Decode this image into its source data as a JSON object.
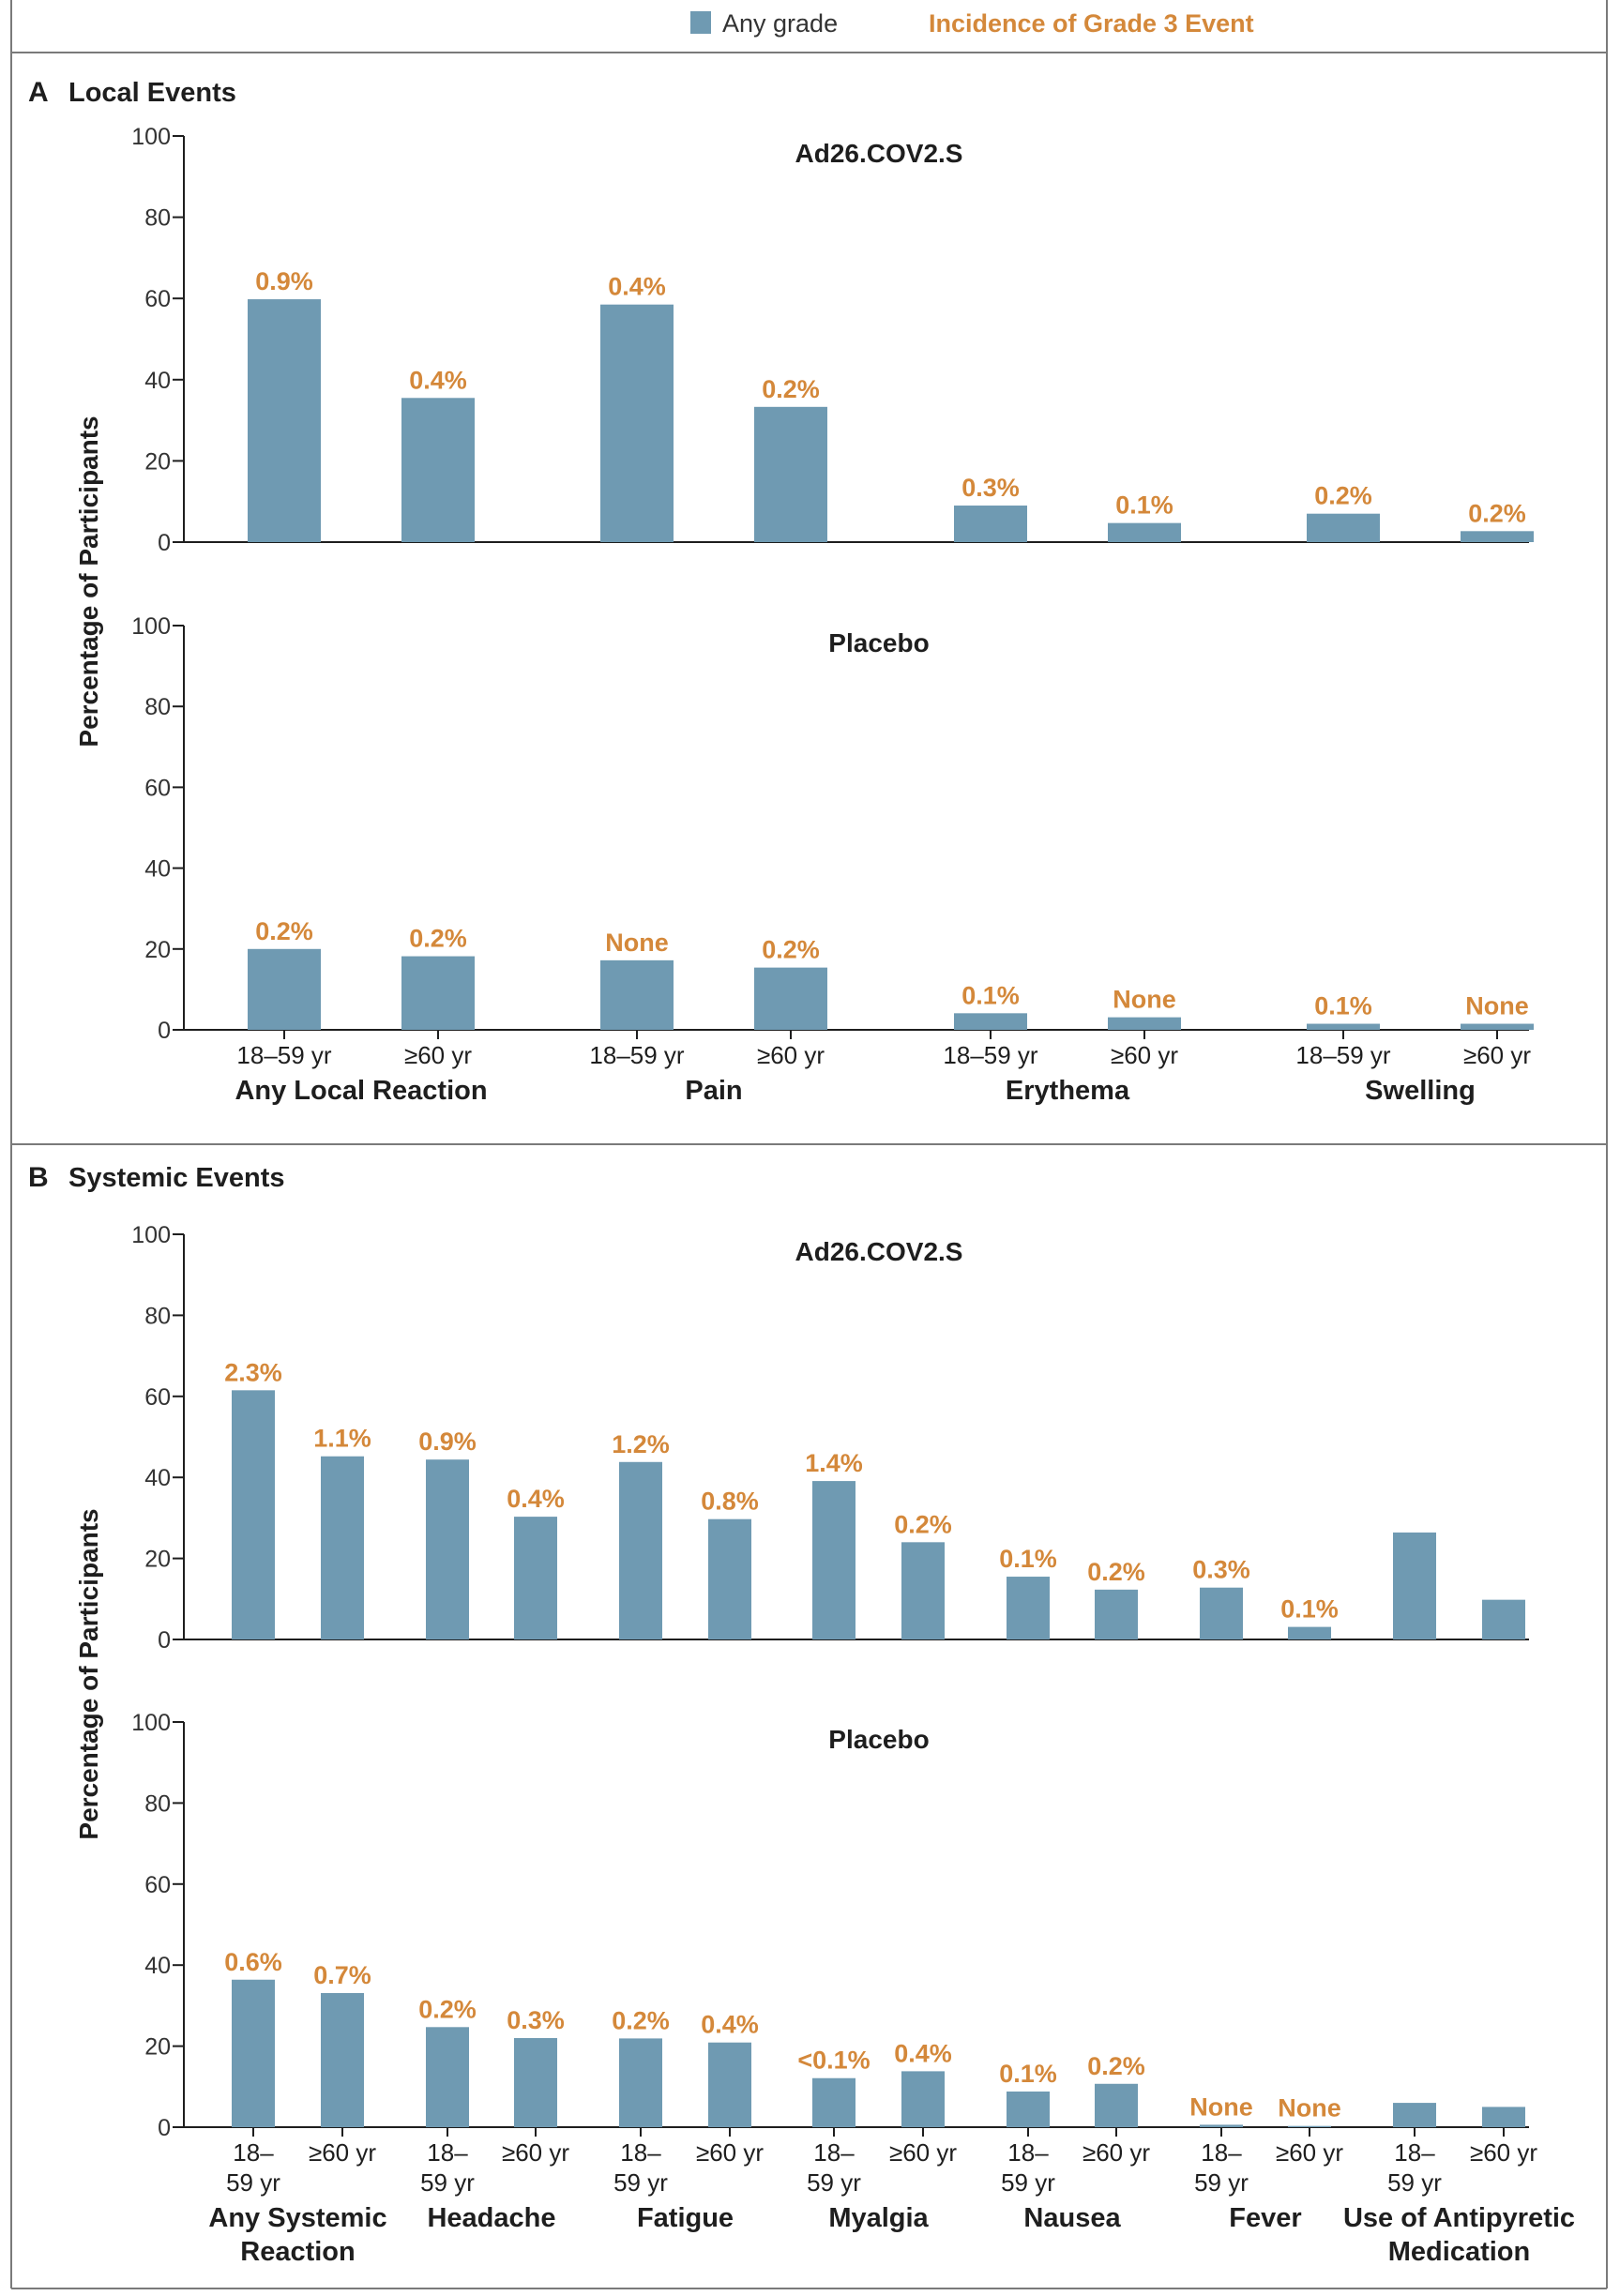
{
  "legend": {
    "any_grade": "Any grade",
    "grade3": "Incidence of Grade 3 Event"
  },
  "colors": {
    "bar": "#6f9ab2",
    "grade3_text": "#d4883a",
    "axis": "#1e1e1e",
    "frame": "#7a7a7a"
  },
  "chart_data": [
    {
      "type": "bar",
      "section_letter": "A",
      "section_title": "Local Events",
      "title": "Ad26.COV2.S",
      "ylabel": "Percentage of Participants",
      "ylim": [
        0,
        100
      ],
      "yticks": [
        0,
        20,
        40,
        60,
        80,
        100
      ],
      "groups": [
        {
          "label": "Any Local Reaction",
          "bars": [
            {
              "age": "18–59 yr",
              "value": 59.8,
              "grade3": "0.9%"
            },
            {
              "age": "≥60 yr",
              "value": 35.5,
              "grade3": "0.4%"
            }
          ]
        },
        {
          "label": "Pain",
          "bars": [
            {
              "age": "18–59 yr",
              "value": 58.5,
              "grade3": "0.4%"
            },
            {
              "age": "≥60 yr",
              "value": 33.3,
              "grade3": "0.2%"
            }
          ]
        },
        {
          "label": "Erythema",
          "bars": [
            {
              "age": "18–59 yr",
              "value": 9.0,
              "grade3": "0.3%"
            },
            {
              "age": "≥60 yr",
              "value": 4.7,
              "grade3": "0.1%"
            }
          ]
        },
        {
          "label": "Swelling",
          "bars": [
            {
              "age": "18–59 yr",
              "value": 7.0,
              "grade3": "0.2%"
            },
            {
              "age": "≥60 yr",
              "value": 2.7,
              "grade3": "0.2%"
            }
          ]
        }
      ]
    },
    {
      "type": "bar",
      "section_letter": "A",
      "section_title": "Local Events",
      "title": "Placebo",
      "ylabel": "Percentage of Participants",
      "ylim": [
        0,
        100
      ],
      "yticks": [
        0,
        20,
        40,
        60,
        80,
        100
      ],
      "groups": [
        {
          "label": "Any Local Reaction",
          "bars": [
            {
              "age": "18–59 yr",
              "value": 20.0,
              "grade3": "0.2%"
            },
            {
              "age": "≥60 yr",
              "value": 18.2,
              "grade3": "0.2%"
            }
          ]
        },
        {
          "label": "Pain",
          "bars": [
            {
              "age": "18–59 yr",
              "value": 17.2,
              "grade3": "None"
            },
            {
              "age": "≥60 yr",
              "value": 15.4,
              "grade3": "0.2%"
            }
          ]
        },
        {
          "label": "Erythema",
          "bars": [
            {
              "age": "18–59 yr",
              "value": 4.1,
              "grade3": "0.1%"
            },
            {
              "age": "≥60 yr",
              "value": 3.1,
              "grade3": "None"
            }
          ]
        },
        {
          "label": "Swelling",
          "bars": [
            {
              "age": "18–59 yr",
              "value": 1.5,
              "grade3": "0.1%"
            },
            {
              "age": "≥60 yr",
              "value": 1.5,
              "grade3": "None"
            }
          ]
        }
      ]
    },
    {
      "type": "bar",
      "section_letter": "B",
      "section_title": "Systemic Events",
      "title": "Ad26.COV2.S",
      "ylabel": "Percentage of Participants",
      "ylim": [
        0,
        100
      ],
      "yticks": [
        0,
        20,
        40,
        60,
        80,
        100
      ],
      "groups": [
        {
          "label": "Any Systemic Reaction",
          "bars": [
            {
              "age": "18– 59 yr",
              "value": 61.5,
              "grade3": "2.3%"
            },
            {
              "age": "≥60 yr",
              "value": 45.2,
              "grade3": "1.1%"
            }
          ]
        },
        {
          "label": "Headache",
          "bars": [
            {
              "age": "18– 59 yr",
              "value": 44.4,
              "grade3": "0.9%"
            },
            {
              "age": "≥60 yr",
              "value": 30.3,
              "grade3": "0.4%"
            }
          ]
        },
        {
          "label": "Fatigue",
          "bars": [
            {
              "age": "18– 59 yr",
              "value": 43.8,
              "grade3": "1.2%"
            },
            {
              "age": "≥60 yr",
              "value": 29.7,
              "grade3": "0.8%"
            }
          ]
        },
        {
          "label": "Myalgia",
          "bars": [
            {
              "age": "18– 59 yr",
              "value": 39.1,
              "grade3": "1.4%"
            },
            {
              "age": "≥60 yr",
              "value": 24.0,
              "grade3": "0.2%"
            }
          ]
        },
        {
          "label": "Nausea",
          "bars": [
            {
              "age": "18– 59 yr",
              "value": 15.5,
              "grade3": "0.1%"
            },
            {
              "age": "≥60 yr",
              "value": 12.3,
              "grade3": "0.2%"
            }
          ]
        },
        {
          "label": "Fever",
          "bars": [
            {
              "age": "18– 59 yr",
              "value": 12.8,
              "grade3": "0.3%"
            },
            {
              "age": "≥60 yr",
              "value": 3.1,
              "grade3": "0.1%"
            }
          ]
        },
        {
          "label": "Use of Antipyretic Medication",
          "bars": [
            {
              "age": "18– 59 yr",
              "value": 26.4,
              "grade3": ""
            },
            {
              "age": "≥60 yr",
              "value": 9.8,
              "grade3": ""
            }
          ]
        }
      ]
    },
    {
      "type": "bar",
      "section_letter": "B",
      "section_title": "Systemic Events",
      "title": "Placebo",
      "ylabel": "Percentage of Participants",
      "ylim": [
        0,
        100
      ],
      "yticks": [
        0,
        20,
        40,
        60,
        80,
        100
      ],
      "groups": [
        {
          "label": "Any Systemic Reaction",
          "bars": [
            {
              "age": "18– 59 yr",
              "value": 36.4,
              "grade3": "0.6%"
            },
            {
              "age": "≥60 yr",
              "value": 33.1,
              "grade3": "0.7%"
            }
          ]
        },
        {
          "label": "Headache",
          "bars": [
            {
              "age": "18– 59 yr",
              "value": 24.7,
              "grade3": "0.2%"
            },
            {
              "age": "≥60 yr",
              "value": 22.0,
              "grade3": "0.3%"
            }
          ]
        },
        {
          "label": "Fatigue",
          "bars": [
            {
              "age": "18– 59 yr",
              "value": 21.9,
              "grade3": "0.2%"
            },
            {
              "age": "≥60 yr",
              "value": 20.9,
              "grade3": "0.4%"
            }
          ]
        },
        {
          "label": "Myalgia",
          "bars": [
            {
              "age": "18– 59 yr",
              "value": 12.1,
              "grade3": "<0.1%"
            },
            {
              "age": "≥60 yr",
              "value": 13.8,
              "grade3": "0.4%"
            }
          ]
        },
        {
          "label": "Nausea",
          "bars": [
            {
              "age": "18– 59 yr",
              "value": 8.8,
              "grade3": "0.1%"
            },
            {
              "age": "≥60 yr",
              "value": 10.7,
              "grade3": "0.2%"
            }
          ]
        },
        {
          "label": "Fever",
          "bars": [
            {
              "age": "18– 59 yr",
              "value": 0.6,
              "grade3": "None"
            },
            {
              "age": "≥60 yr",
              "value": 0.3,
              "grade3": "None"
            }
          ]
        },
        {
          "label": "Use of Antipyretic Medication",
          "bars": [
            {
              "age": "18– 59 yr",
              "value": 6.0,
              "grade3": ""
            },
            {
              "age": "≥60 yr",
              "value": 5.0,
              "grade3": ""
            }
          ]
        }
      ]
    }
  ]
}
